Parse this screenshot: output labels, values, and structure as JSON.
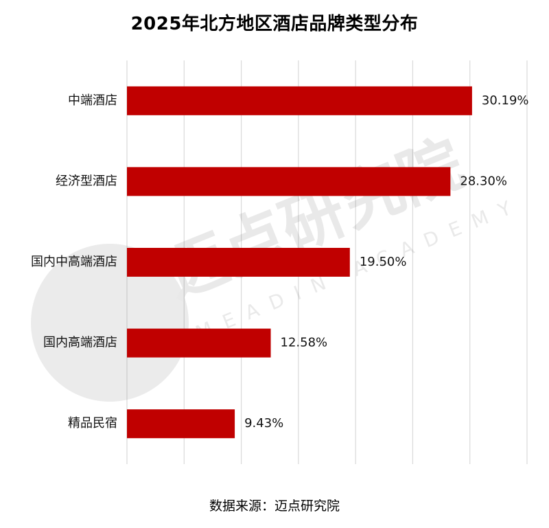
{
  "chart_data": {
    "type": "bar",
    "orientation": "horizontal",
    "title": "2025年北方地区酒店品牌类型分布",
    "categories": [
      "中端酒店",
      "经济型酒店",
      "国内中高端酒店",
      "国内高端酒店",
      "精品民宿"
    ],
    "values": [
      30.19,
      28.3,
      19.5,
      12.58,
      9.43
    ],
    "value_labels": [
      "30.19%",
      "28.30%",
      "19.50%",
      "12.58%",
      "9.43%"
    ],
    "unit": "%",
    "xlim": [
      0,
      35
    ],
    "grid": "vertical",
    "bar_color": "#c00000",
    "source": "数据来源：迈点研究院"
  },
  "watermark": {
    "text": "迈点研究院",
    "subtext": "MEADIN ACADEMY"
  }
}
